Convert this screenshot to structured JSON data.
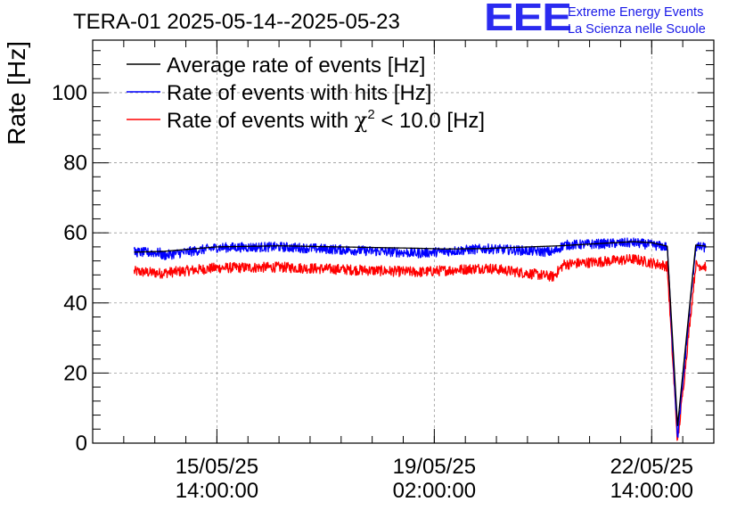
{
  "header": {
    "title": "TERA-01 2025-05-14--2025-05-23",
    "logo_mark": "EEE",
    "logo_line1": "Extreme Energy Events",
    "logo_line2": "La Scienza nelle Scuole"
  },
  "chart_data": {
    "type": "line",
    "title": "TERA-01 2025-05-14--2025-05-23",
    "xlabel": "",
    "ylabel": "Rate [Hz]",
    "ylim": [
      0,
      115
    ],
    "xlim": [
      "2025-05-13 14:00",
      "2025-05-23 14:00"
    ],
    "grid": true,
    "legend_position": "top-left",
    "x_ticks": [
      {
        "date": "2025-05-15 14:00",
        "line1": "15/05/25",
        "line2": "14:00:00"
      },
      {
        "date": "2025-05-19 02:00",
        "line1": "19/05/25",
        "line2": "02:00:00"
      },
      {
        "date": "2025-05-22 14:00",
        "line1": "22/05/25",
        "line2": "14:00:00"
      }
    ],
    "y_ticks": [
      0,
      20,
      40,
      60,
      80,
      100
    ],
    "series": [
      {
        "name": "Average rate of events [Hz]",
        "color": "#000000",
        "noise": 0,
        "points": [
          [
            "2025-05-14 06:00",
            54.5
          ],
          [
            "2025-05-14 17:00",
            54.7
          ],
          [
            "2025-05-15 14:00",
            56.0
          ],
          [
            "2025-05-16 14:00",
            56.3
          ],
          [
            "2025-05-18 20:00",
            55.6
          ],
          [
            "2025-05-19 06:00",
            55.4
          ],
          [
            "2025-05-19 20:00",
            55.5
          ],
          [
            "2025-05-21 02:00",
            56.3
          ],
          [
            "2025-05-22 07:00",
            57.5
          ],
          [
            "2025-05-22 14:00",
            57.2
          ],
          [
            "2025-05-22 20:00",
            56.2
          ],
          [
            "2025-05-23 00:00",
            5.0
          ],
          [
            "2025-05-23 07:00",
            56.5
          ],
          [
            "2025-05-23 11:00",
            56.2
          ]
        ]
      },
      {
        "name": "Rate of events with hits [Hz]",
        "color": "#0000ff",
        "noise": 1.4,
        "points": [
          [
            "2025-05-14 06:00",
            54.5
          ],
          [
            "2025-05-14 16:00",
            54.3
          ],
          [
            "2025-05-14 17:00",
            53.5
          ],
          [
            "2025-05-15 14:00",
            55.8
          ],
          [
            "2025-05-16 14:00",
            56.0
          ],
          [
            "2025-05-18 20:00",
            54.2
          ],
          [
            "2025-05-19 22:00",
            55.5
          ],
          [
            "2025-05-21 00:00",
            54.5
          ],
          [
            "2025-05-21 04:00",
            56.5
          ],
          [
            "2025-05-22 07:00",
            57.2
          ],
          [
            "2025-05-22 20:00",
            56.0
          ],
          [
            "2025-05-23 00:00",
            1.5
          ],
          [
            "2025-05-23 07:00",
            56.0
          ],
          [
            "2025-05-23 11:00",
            55.8
          ]
        ]
      },
      {
        "name": "Rate of events with χ² < 10.0 [Hz]",
        "color": "#ff0000",
        "noise": 1.5,
        "points": [
          [
            "2025-05-14 06:00",
            49.0
          ],
          [
            "2025-05-14 16:00",
            48.5
          ],
          [
            "2025-05-15 14:00",
            50.0
          ],
          [
            "2025-05-16 14:00",
            50.2
          ],
          [
            "2025-05-18 20:00",
            48.8
          ],
          [
            "2025-05-19 22:00",
            50.0
          ],
          [
            "2025-05-21 00:00",
            47.5
          ],
          [
            "2025-05-21 04:00",
            51.0
          ],
          [
            "2025-05-22 07:00",
            52.5
          ],
          [
            "2025-05-22 20:00",
            50.5
          ],
          [
            "2025-05-23 00:00",
            0.0
          ],
          [
            "2025-05-23 07:00",
            50.8
          ],
          [
            "2025-05-23 11:00",
            50.5
          ]
        ]
      }
    ],
    "legend": {
      "black_label": "Average rate of events [Hz]",
      "blue_label": "Rate of events with hits [Hz]",
      "red_label_prefix": "Rate of events with ",
      "red_label_chi": "χ",
      "red_label_sup": "2",
      "red_label_suffix": " < 10.0 [Hz]"
    }
  }
}
